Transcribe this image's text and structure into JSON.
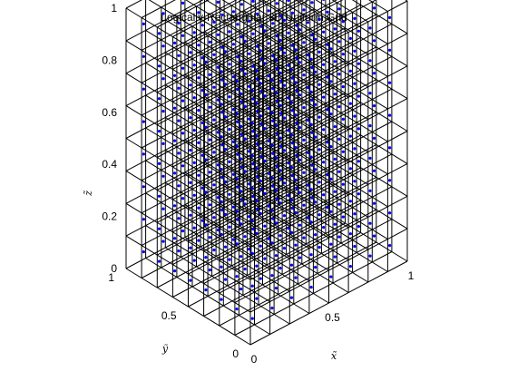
{
  "chart_data": {
    "type": "scatter",
    "title": "Logically-Rectangular 3D Uniform Grid",
    "xlabel": "x̃",
    "ylabel": "ỹ",
    "zlabel": "z̃",
    "xlim": [
      0,
      1
    ],
    "ylim": [
      0,
      1
    ],
    "zlim": [
      0,
      1
    ],
    "grid_lines": [
      0,
      0.125,
      0.25,
      0.375,
      0.5,
      0.625,
      0.75,
      0.875,
      1
    ],
    "x_ticks": [
      {
        "value": 0,
        "label": "0"
      },
      {
        "value": 0.5,
        "label": "0.5"
      },
      {
        "value": 1,
        "label": "1"
      }
    ],
    "y_ticks": [
      {
        "value": 0,
        "label": "0"
      },
      {
        "value": 0.5,
        "label": "0.5"
      },
      {
        "value": 1,
        "label": "1"
      }
    ],
    "z_ticks": [
      {
        "value": 0,
        "label": "0"
      },
      {
        "value": 0.2,
        "label": "0.2"
      },
      {
        "value": 0.4,
        "label": "0.4"
      },
      {
        "value": 0.6,
        "label": "0.6"
      },
      {
        "value": 0.8,
        "label": "0.8"
      },
      {
        "value": 1,
        "label": "1"
      }
    ],
    "point_coordinates": [
      0.0625,
      0.1875,
      0.3125,
      0.4375,
      0.5625,
      0.6875,
      0.8125,
      0.9375
    ],
    "marker_color": "#0000ff",
    "line_color": "#000000"
  }
}
